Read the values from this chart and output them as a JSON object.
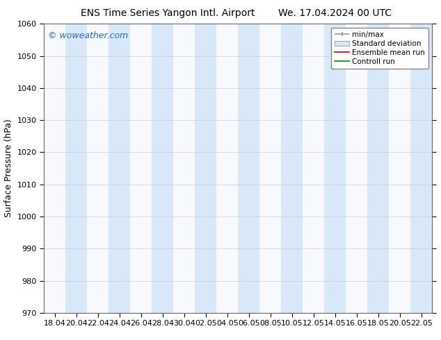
{
  "title_left": "ENS Time Series Yangon Intl. Airport",
  "title_right": "We. 17.04.2024 00 UTC",
  "ylabel": "Surface Pressure (hPa)",
  "ylim": [
    970,
    1060
  ],
  "yticks": [
    970,
    980,
    990,
    1000,
    1010,
    1020,
    1030,
    1040,
    1050,
    1060
  ],
  "xtick_labels": [
    "18.04",
    "20.04",
    "22.04",
    "24.04",
    "26.04",
    "28.04",
    "30.04",
    "02.05",
    "04.05",
    "06.05",
    "08.05",
    "10.05",
    "12.05",
    "14.05",
    "16.05",
    "18.05",
    "20.05",
    "22.05"
  ],
  "watermark": "© woweather.com",
  "watermark_color": "#1a6dcc",
  "bg_color": "#ffffff",
  "plot_bg_color": "#f8f8ff",
  "band_color": "#d8e8f8",
  "legend_labels": [
    "min/max",
    "Standard deviation",
    "Ensemble mean run",
    "Controll run"
  ],
  "legend_line_color": "#999999",
  "legend_std_face": "#d8e8f8",
  "legend_std_edge": "#aaaaaa",
  "legend_ensemble_color": "#cc0000",
  "legend_control_color": "#008800",
  "title_fontsize": 10,
  "ylabel_fontsize": 9,
  "tick_fontsize": 8,
  "watermark_fontsize": 9,
  "legend_fontsize": 7.5,
  "band_positions_start": [
    1,
    3,
    5,
    7,
    9,
    11,
    13,
    15,
    17
  ],
  "band_positions_end": [
    2,
    4,
    6,
    8,
    10,
    12,
    14,
    16,
    18
  ],
  "n_xticks": 18
}
